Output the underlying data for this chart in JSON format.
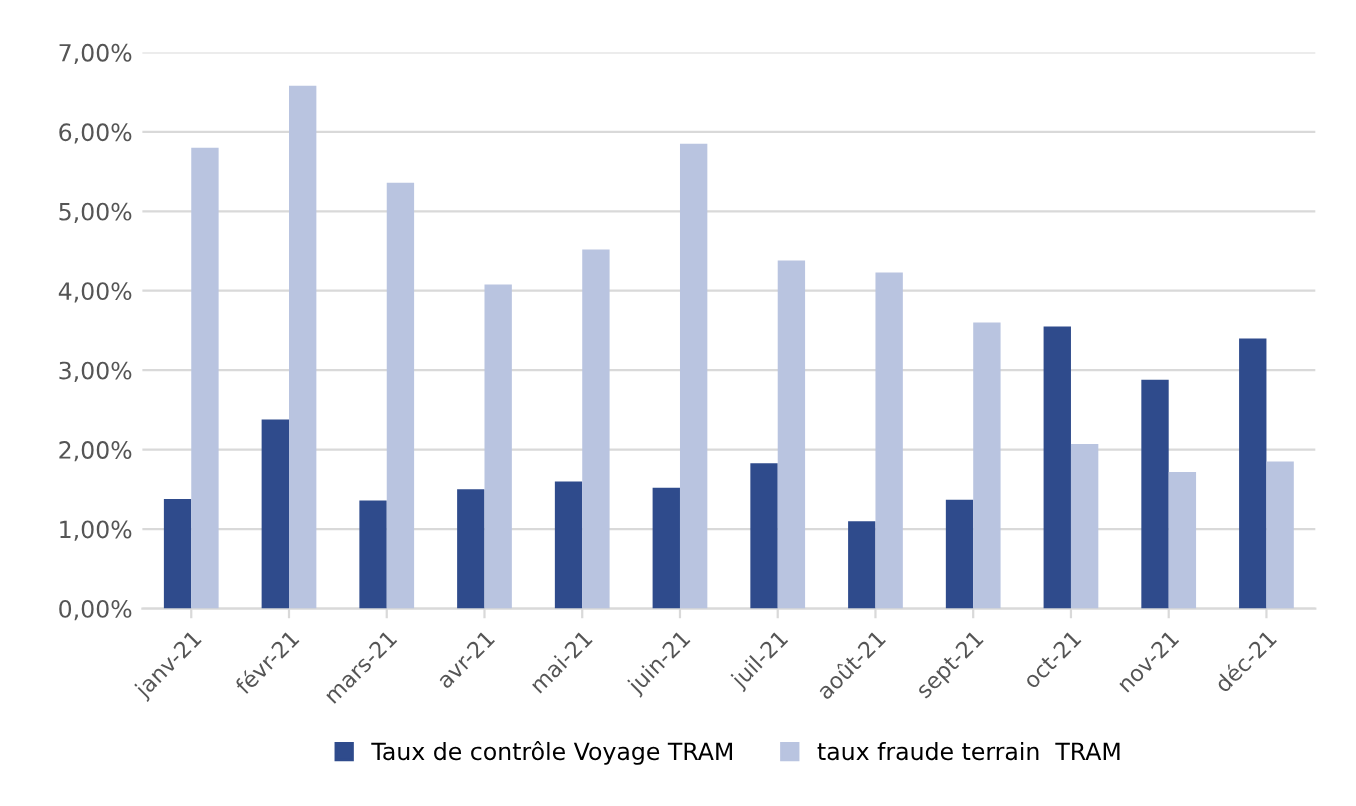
{
  "chart_data": {
    "type": "bar",
    "categories": [
      "janv-21",
      "févr-21",
      "mars-21",
      "avr-21",
      "mai-21",
      "juin-21",
      "juil-21",
      "août-21",
      "sept-21",
      "oct-21",
      "nov-21",
      "déc-21"
    ],
    "series": [
      {
        "name": "Taux de contrôle Voyage TRAM",
        "color": "#2f4b8c",
        "values": [
          1.38,
          2.38,
          1.36,
          1.5,
          1.6,
          1.52,
          1.83,
          1.1,
          1.37,
          3.55,
          2.88,
          3.4
        ]
      },
      {
        "name": "taux fraude terrain  TRAM",
        "color": "#b9c4e0",
        "values": [
          5.8,
          6.58,
          5.36,
          4.08,
          4.52,
          5.85,
          4.38,
          4.23,
          3.6,
          2.07,
          1.72,
          1.85
        ]
      }
    ],
    "ylim": [
      0,
      7
    ],
    "yticks": [
      {
        "value": 0,
        "label": "0,00%"
      },
      {
        "value": 1,
        "label": "1,00%"
      },
      {
        "value": 2,
        "label": "2,00%"
      },
      {
        "value": 3,
        "label": "3,00%"
      },
      {
        "value": 4,
        "label": "4,00%"
      },
      {
        "value": 5,
        "label": "5,00%"
      },
      {
        "value": 6,
        "label": "6,00%"
      },
      {
        "value": 7,
        "label": "7,00%"
      }
    ],
    "grid": "y",
    "legend": "bottom"
  }
}
